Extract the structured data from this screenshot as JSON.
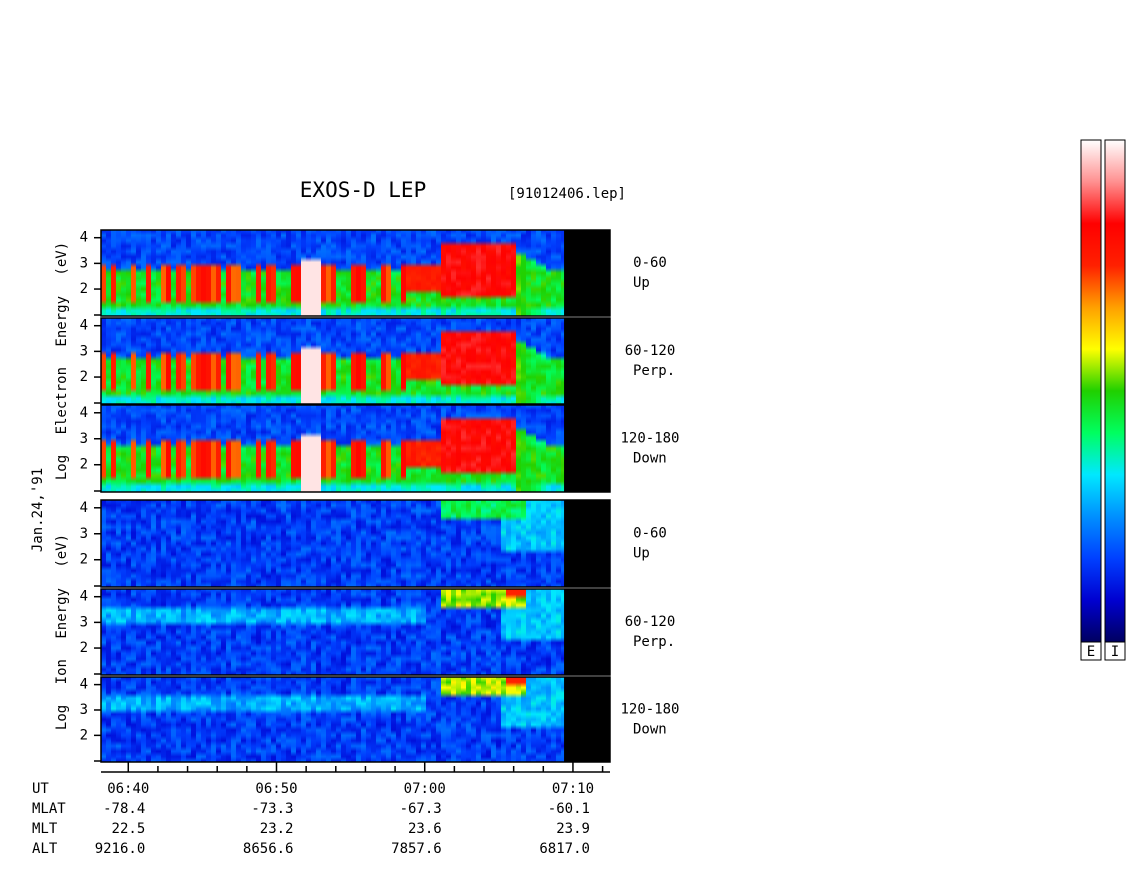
{
  "chart_data": {
    "type": "spectrogram",
    "title": "EXOS-D LEP",
    "file_label": "[91012406.lep]",
    "date_label": "Jan.24,'91",
    "electron_label": "Log Electron Energy (eV)",
    "ion_label": "Log Ion Energy (eV)",
    "panels": [
      {
        "species": "electron",
        "pitch": "0-60",
        "direction": "Up"
      },
      {
        "species": "electron",
        "pitch": "60-120",
        "direction": "Perp."
      },
      {
        "species": "electron",
        "pitch": "120-180",
        "direction": "Down"
      },
      {
        "species": "ion",
        "pitch": "0-60",
        "direction": "Up"
      },
      {
        "species": "ion",
        "pitch": "60-120",
        "direction": "Perp."
      },
      {
        "species": "ion",
        "pitch": "120-180",
        "direction": "Down"
      }
    ],
    "ylim": [
      0.95,
      4.3
    ],
    "yticks": [
      2,
      3,
      4
    ],
    "xlim": [
      38.16,
      72.5
    ],
    "xticks": [
      {
        "value": 40,
        "label": "06:40"
      },
      {
        "value": 50,
        "label": "06:50"
      },
      {
        "value": 60,
        "label": "07:00"
      },
      {
        "value": 70,
        "label": "07:10"
      }
    ],
    "xminor_ticks": [
      42,
      44,
      46,
      48,
      52,
      54,
      56,
      58,
      62,
      64,
      66,
      68,
      72
    ],
    "orbit_rows": [
      {
        "label": "UT"
      },
      {
        "label": "MLAT",
        "values": [
          "-78.4",
          "-73.3",
          "-67.3",
          "-60.1"
        ]
      },
      {
        "label": "MLT",
        "values": [
          "22.5",
          "23.2",
          "23.6",
          "23.9"
        ]
      },
      {
        "label": "ALT",
        "values": [
          "9216.0",
          "8656.6",
          "7857.6",
          "6817.0"
        ]
      }
    ],
    "colorbar_labels": [
      "E",
      "I"
    ],
    "colormap": [
      "#000060",
      "#0000d0",
      "#0040ff",
      "#0090ff",
      "#00e8ff",
      "#00ff60",
      "#20d000",
      "#ffff00",
      "#ffa000",
      "#ff2000",
      "#ff0000",
      "#ff9090",
      "#ffffff"
    ]
  }
}
